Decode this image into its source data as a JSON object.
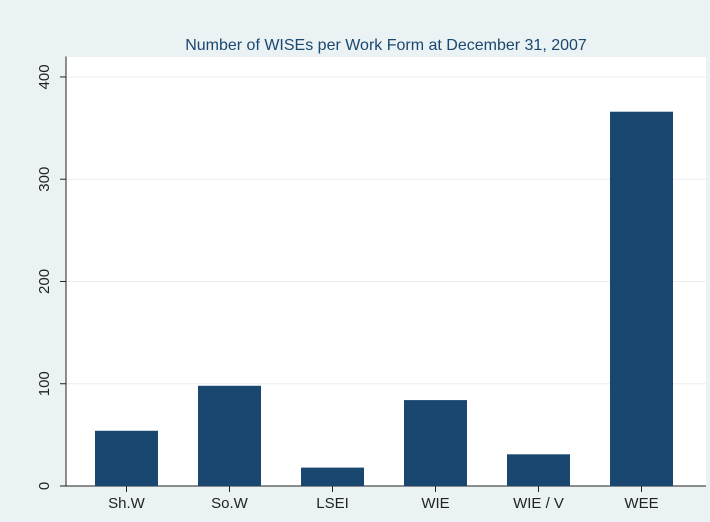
{
  "chart_data": {
    "type": "bar",
    "title": "Number of WISEs per Work Form at December 31, 2007",
    "categories": [
      "Sh.W",
      "So.W",
      "LSEI",
      "WIE",
      "WIE / V",
      "WEE"
    ],
    "values": [
      54,
      98,
      18,
      84,
      31,
      366
    ],
    "color": "#1a476f",
    "ylim": [
      0,
      420
    ],
    "yticks": [
      0,
      100,
      200,
      300,
      400
    ],
    "grid": true
  }
}
